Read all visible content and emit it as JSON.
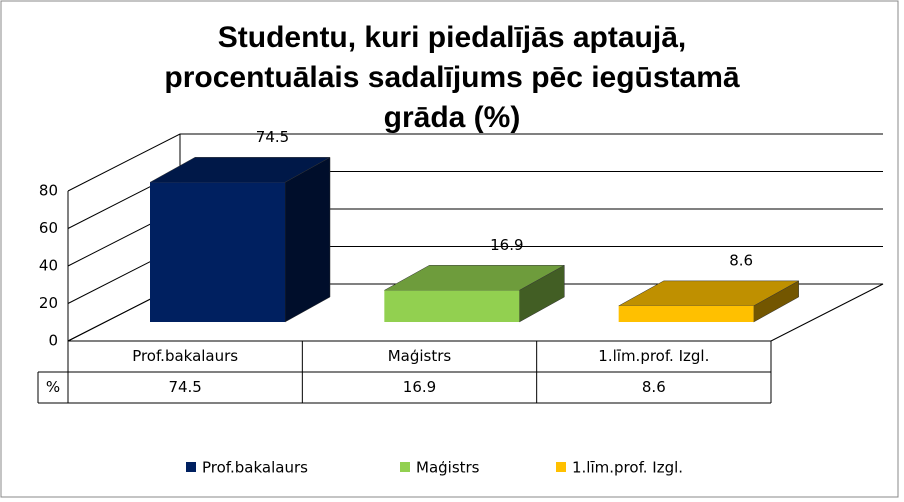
{
  "chart_data": {
    "type": "bar",
    "title": "Studentu, kuri piedalījās aptaujā, procentuālais sadalījums pēc iegūstamā grāda (%)",
    "categories": [
      "Prof.bakalaurs",
      "Maģistrs",
      "1.līm.prof. Izgl."
    ],
    "series_name": "%",
    "values": [
      74.5,
      16.9,
      8.6
    ],
    "colors": [
      "#002060",
      "#92d050",
      "#ffc000"
    ],
    "ylim": [
      0,
      80
    ],
    "yticks": [
      0,
      20,
      40,
      60,
      80
    ],
    "grid": true,
    "legend": "bottom",
    "data_table": true
  }
}
